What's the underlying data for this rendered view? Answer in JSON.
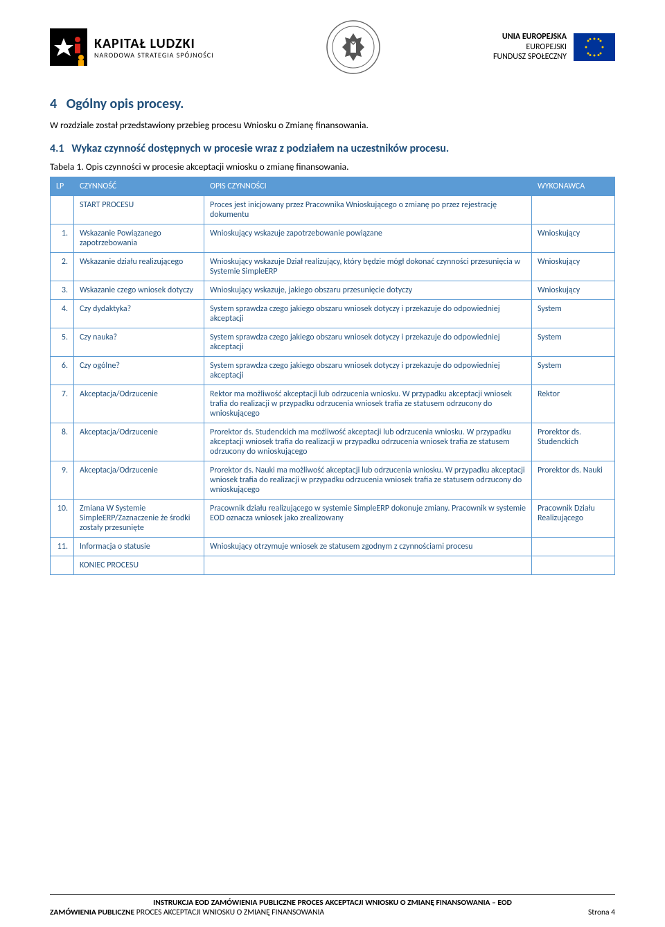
{
  "header": {
    "kl_main": "KAPITAŁ LUDZKI",
    "kl_sub": "NARODOWA STRATEGIA SPÓJNOŚCI",
    "eu_line1": "UNIA EUROPEJSKA",
    "eu_line2": "EUROPEJSKI",
    "eu_line3": "FUNDUSZ SPOŁECZNY"
  },
  "section": {
    "num": "4",
    "title": "Ogólny opis procesy.",
    "intro": "W rozdziale został przedstawiony przebieg procesu Wniosku o Zmianę finansowania.",
    "sub_num": "4.1",
    "sub_title": "Wykaz czynność dostępnych w procesie wraz z podziałem na uczestników procesu.",
    "table_caption": "Tabela 1. Opis czynności w procesie akceptacji wniosku o zmianę finansowania."
  },
  "table": {
    "headers": {
      "lp": "LP",
      "activity": "CZYNNOŚĆ",
      "desc": "OPIS CZYNNOŚCI",
      "who": "WYKONAWCA"
    },
    "rows": [
      {
        "lp": "",
        "activity": "START PROCESU",
        "desc": "Proces jest inicjowany przez Pracownika Wnioskującego o zmianę po przez rejestrację dokumentu",
        "who": ""
      },
      {
        "lp": "1.",
        "activity": "Wskazanie Powiązanego zapotrzebowania",
        "desc": "Wnioskujący wskazuje zapotrzebowanie powiązane",
        "who": "Wnioskujący"
      },
      {
        "lp": "2.",
        "activity": "Wskazanie działu realizującego",
        "desc": "Wnioskujący wskazuje Dział realizujący, który będzie mógł dokonać czynności przesunięcia w Systemie SimpleERP",
        "who": "Wnioskujący"
      },
      {
        "lp": "3.",
        "activity": "Wskazanie czego wniosek dotyczy",
        "desc": "Wnioskujący wskazuje, jakiego obszaru przesunięcie dotyczy",
        "who": "Wnioskujący"
      },
      {
        "lp": "4.",
        "activity": "Czy dydaktyka?",
        "desc": "System sprawdza czego jakiego obszaru wniosek dotyczy i przekazuje do odpowiedniej akceptacji",
        "who": "System"
      },
      {
        "lp": "5.",
        "activity": "Czy nauka?",
        "desc": "System sprawdza czego jakiego obszaru wniosek dotyczy i przekazuje do odpowiedniej akceptacji",
        "who": "System"
      },
      {
        "lp": "6.",
        "activity": "Czy ogólne?",
        "desc": "System sprawdza czego jakiego obszaru wniosek dotyczy i przekazuje do odpowiedniej akceptacji",
        "who": "System"
      },
      {
        "lp": "7.",
        "activity": "Akceptacja/Odrzucenie",
        "desc": "Rektor ma możliwość akceptacji lub odrzucenia wniosku. W przypadku akceptacji wniosek trafia do realizacji w przypadku odrzucenia wniosek trafia ze statusem odrzucony do wnioskującego",
        "who": "Rektor"
      },
      {
        "lp": "8.",
        "activity": "Akceptacja/Odrzucenie",
        "desc": "Prorektor ds. Studenckich ma możliwość akceptacji lub odrzucenia wniosku. W przypadku akceptacji wniosek trafia do realizacji w przypadku odrzucenia wniosek trafia ze statusem odrzucony do wnioskującego",
        "who": "Prorektor ds. Studenckich"
      },
      {
        "lp": "9.",
        "activity": "Akceptacja/Odrzucenie",
        "desc": "Prorektor ds. Nauki ma możliwość akceptacji lub odrzucenia wniosku. W przypadku akceptacji wniosek trafia do realizacji w przypadku odrzucenia wniosek trafia ze statusem odrzucony do wnioskującego",
        "who": "Prorektor ds. Nauki"
      },
      {
        "lp": "10.",
        "activity": "Zmiana W Systemie SimpleERP/Zaznaczenie że środki zostały przesunięte",
        "desc": "Pracownik działu realizującego w systemie SimpleERP dokonuje zmiany. Pracownik w systemie EOD oznacza wniosek jako zrealizowany",
        "who": "Pracownik Działu Realizującego"
      },
      {
        "lp": "11.",
        "activity": "Informacja o statusie",
        "desc": "Wnioskujący otrzymuje wniosek ze statusem zgodnym z czynnościami procesu",
        "who": ""
      },
      {
        "lp": "",
        "activity": "KONIEC PROCESU",
        "desc": "",
        "who": ""
      }
    ]
  },
  "footer": {
    "line1": "INSTRUKCJA EOD ZAMÓWIENIA PUBLICZNE PROCES AKCEPTACJI WNIOSKU O ZMIANĘ FINANSOWANIA – EOD",
    "line2_bold": "ZAMÓWIENIA PUBLICZNE",
    "line2_rest": " PROCES AKCEPTACJI WNIOSKU O ZMIANĘ FINANSOWANIA",
    "page": "Strona 4"
  }
}
